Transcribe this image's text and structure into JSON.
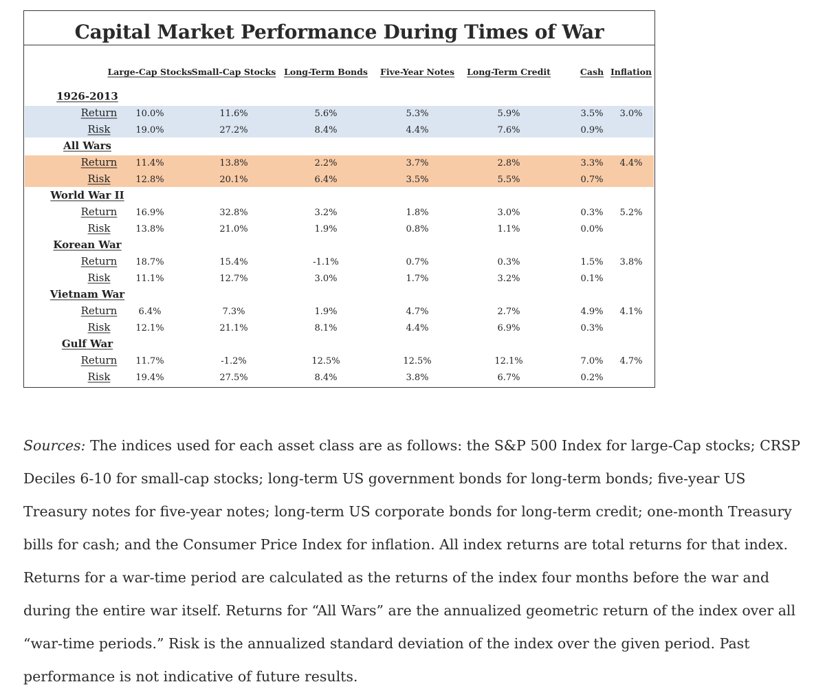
{
  "chart_data": {
    "type": "table",
    "title": "Capital Market Performance During Times of War",
    "columns": [
      "Large-Cap Stocks",
      "Small-Cap Stocks",
      "Long-Term Bonds",
      "Five-Year Notes",
      "Long-Term Credit",
      "Cash",
      "Inflation"
    ],
    "groups": [
      {
        "name": "1926-2013",
        "highlight": "#dbe5f1",
        "rows": [
          {
            "label": "Return",
            "values": [
              "10.0%",
              "11.6%",
              "5.6%",
              "5.3%",
              "5.9%",
              "3.5%",
              "3.0%"
            ]
          },
          {
            "label": "Risk",
            "values": [
              "19.0%",
              "27.2%",
              "8.4%",
              "4.4%",
              "7.6%",
              "0.9%",
              ""
            ]
          }
        ]
      },
      {
        "name": "All Wars",
        "highlight": "#f8cba7",
        "rows": [
          {
            "label": "Return",
            "values": [
              "11.4%",
              "13.8%",
              "2.2%",
              "3.7%",
              "2.8%",
              "3.3%",
              "4.4%"
            ]
          },
          {
            "label": "Risk",
            "values": [
              "12.8%",
              "20.1%",
              "6.4%",
              "3.5%",
              "5.5%",
              "0.7%",
              ""
            ]
          }
        ]
      },
      {
        "name": "World War II",
        "highlight": "",
        "rows": [
          {
            "label": "Return",
            "values": [
              "16.9%",
              "32.8%",
              "3.2%",
              "1.8%",
              "3.0%",
              "0.3%",
              "5.2%"
            ]
          },
          {
            "label": "Risk",
            "values": [
              "13.8%",
              "21.0%",
              "1.9%",
              "0.8%",
              "1.1%",
              "0.0%",
              ""
            ]
          }
        ]
      },
      {
        "name": "Korean War",
        "highlight": "",
        "rows": [
          {
            "label": "Return",
            "values": [
              "18.7%",
              "15.4%",
              "-1.1%",
              "0.7%",
              "0.3%",
              "1.5%",
              "3.8%"
            ]
          },
          {
            "label": "Risk",
            "values": [
              "11.1%",
              "12.7%",
              "3.0%",
              "1.7%",
              "3.2%",
              "0.1%",
              ""
            ]
          }
        ]
      },
      {
        "name": "Vietnam War",
        "highlight": "",
        "rows": [
          {
            "label": "Return",
            "values": [
              "6.4%",
              "7.3%",
              "1.9%",
              "4.7%",
              "2.7%",
              "4.9%",
              "4.1%"
            ]
          },
          {
            "label": "Risk",
            "values": [
              "12.1%",
              "21.1%",
              "8.1%",
              "4.4%",
              "6.9%",
              "0.3%",
              ""
            ]
          }
        ]
      },
      {
        "name": "Gulf War",
        "highlight": "",
        "rows": [
          {
            "label": "Return",
            "values": [
              "11.7%",
              "-1.2%",
              "12.5%",
              "12.5%",
              "12.1%",
              "7.0%",
              "4.7%"
            ]
          },
          {
            "label": "Risk",
            "values": [
              "19.4%",
              "27.5%",
              "8.4%",
              "3.8%",
              "6.7%",
              "0.2%",
              ""
            ]
          }
        ]
      }
    ]
  },
  "sources": {
    "label": "Sources:",
    "text": "The indices used for each asset class are as follows: the S&P 500 Index for large-Cap stocks; CRSP Deciles 6-10 for small-cap stocks; long-term US government bonds for long-term bonds; five-year US Treasury notes for five-year notes; long-term US corporate bonds for long-term credit; one-month Treasury bills for cash; and the Consumer Price Index for inflation. All index returns are total returns for that index. Returns for a war-time period are calculated as the returns of the index four months before the war and during the entire war itself. Returns for “All Wars” are the annualized geometric return of the index over all “war-time periods.” Risk is the annualized standard deviation of the index over the given period. Past performance is not indicative of future results."
  }
}
